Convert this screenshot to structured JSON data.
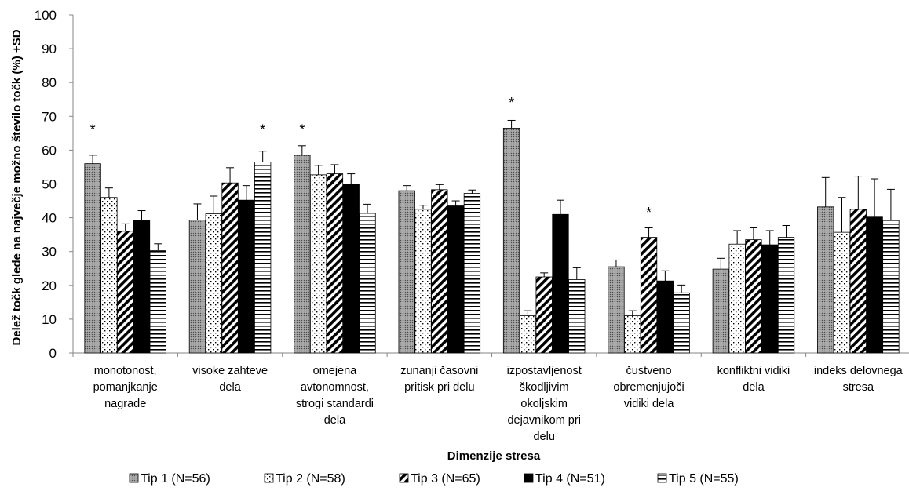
{
  "chart_data": {
    "type": "bar",
    "title": "",
    "xlabel": "Dimenzije stresa",
    "ylabel": "Delež točk glede na največje možno število točk (%) +SD",
    "ylim": [
      0,
      100
    ],
    "yticks": [
      0,
      10,
      20,
      30,
      40,
      50,
      60,
      70,
      80,
      90,
      100
    ],
    "legend_position": "bottom",
    "grid": false,
    "categories": [
      [
        "monotonost,",
        "pomanjkanje",
        "nagrade"
      ],
      [
        "visoke zahteve",
        "dela"
      ],
      [
        "omejena",
        "avtonomnost,",
        "strogi standardi",
        "dela"
      ],
      [
        "zunanji časovni",
        "pritisk pri delu"
      ],
      [
        "izpostavljenost",
        "škodljivim",
        "okoljskim",
        "dejavnikom pri",
        "delu"
      ],
      [
        "čustveno",
        "obremenjujoči",
        "vidiki dela"
      ],
      [
        "konfliktni vidiki",
        "dela"
      ],
      [
        "indeks delovnega",
        "stresa"
      ]
    ],
    "series": [
      {
        "name": "Tip 1 (N=56)",
        "pattern": "dots-gray",
        "values": [
          56,
          39.3,
          58.5,
          48,
          66.5,
          25.5,
          24.8,
          43.2
        ],
        "sd": [
          2.5,
          4.8,
          2.8,
          1.5,
          2.3,
          2.0,
          3.2,
          8.7
        ]
      },
      {
        "name": "Tip 2 (N=58)",
        "pattern": "dots-sparse",
        "values": [
          46,
          41.2,
          52.7,
          42.5,
          11,
          11,
          32.2,
          35.7
        ],
        "sd": [
          2.8,
          5.2,
          2.8,
          1.2,
          1.5,
          1.5,
          4.0,
          10.3
        ]
      },
      {
        "name": "Tip 3 (N=65)",
        "pattern": "diagonal",
        "values": [
          36,
          50.3,
          53,
          48.3,
          22.5,
          34.2,
          33.5,
          42.5
        ],
        "sd": [
          2.2,
          4.5,
          2.7,
          1.5,
          1.2,
          2.8,
          3.5,
          9.8
        ]
      },
      {
        "name": "Tip 4 (N=51)",
        "pattern": "solid",
        "values": [
          39.3,
          45.2,
          50,
          43.5,
          41,
          21.3,
          32,
          40.2
        ],
        "sd": [
          2.8,
          4.3,
          3.0,
          1.5,
          4.2,
          3.0,
          4.2,
          11.3
        ]
      },
      {
        "name": "Tip 5 (N=55)",
        "pattern": "horizontal",
        "values": [
          30.3,
          56.5,
          41.3,
          47.2,
          21.7,
          17.8,
          34.2,
          39.3
        ],
        "sd": [
          2.0,
          3.2,
          2.7,
          1.0,
          3.5,
          2.3,
          3.5,
          9.1
        ]
      }
    ],
    "annotations": [
      {
        "text": "*",
        "category": 0,
        "series": 0,
        "value": 66.5,
        "color": "#000000"
      },
      {
        "text": "*",
        "category": 1,
        "series": 4,
        "value": 66.5,
        "color": "#000000"
      },
      {
        "text": "*",
        "category": 2,
        "series": 0,
        "value": 66.5,
        "color": "#000000"
      },
      {
        "text": "*",
        "category": 4,
        "series": 0,
        "value": 74.5,
        "color": "#000000"
      },
      {
        "text": "*",
        "category": 5,
        "series": 2,
        "value": 42,
        "color": "#808080"
      }
    ]
  }
}
